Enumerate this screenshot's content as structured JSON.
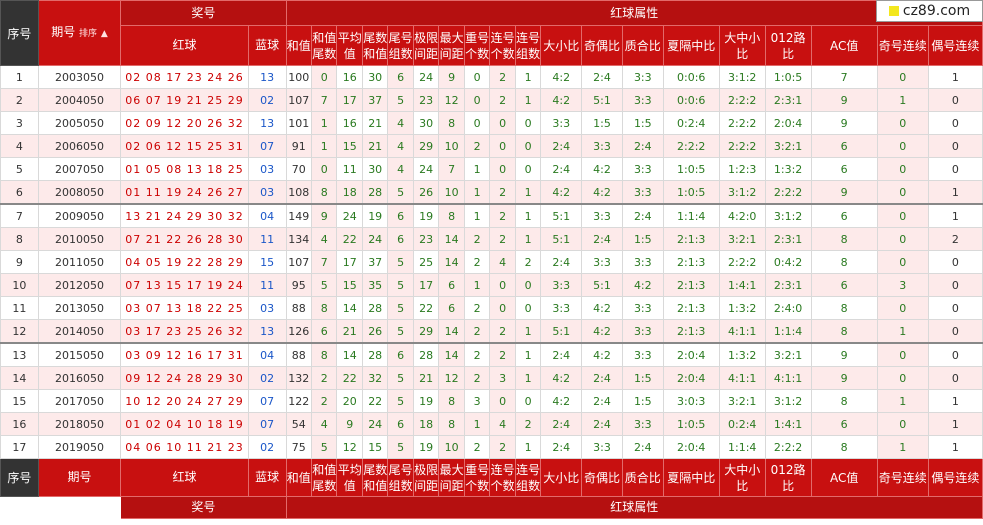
{
  "badge": {
    "text": "cz89.com",
    "icon": "yellow-square-icon"
  },
  "colors": {
    "header_red": "#c81010",
    "header_dark": "#333333",
    "red_ball": "#cc0000",
    "blue_ball": "#1a56c8",
    "attr_green": "#2a7a20"
  },
  "header": {
    "seq": "序号",
    "period": "期号",
    "sort": "排序",
    "prize": "奖号",
    "attr": "红球属性",
    "red": "红球",
    "blue": "蓝球",
    "cols": [
      "和值",
      "和值尾数",
      "平均值",
      "尾数和值",
      "尾号组数",
      "极限间距",
      "最大间距",
      "重号个数",
      "连号个数",
      "连号组数",
      "大小比",
      "奇偶比",
      "质合比",
      "夏隔中比",
      "大中小比",
      "012路比",
      "AC值",
      "奇号连续",
      "偶号连续"
    ]
  },
  "footer": {
    "seq": "序号",
    "period": "期号",
    "red": "红球",
    "blue": "蓝球",
    "prize": "奖号",
    "attr": "红球属性"
  },
  "rows": [
    {
      "seq": "1",
      "period": "2003050",
      "red": "02 08 17 23 24 26",
      "blue": "13",
      "v": [
        "100",
        "0",
        "16",
        "30",
        "6",
        "24",
        "9",
        "0",
        "2",
        "1",
        "4:2",
        "2:4",
        "3:3",
        "0:0:6",
        "3:1:2",
        "1:0:5",
        "7",
        "0",
        "1"
      ]
    },
    {
      "seq": "2",
      "period": "2004050",
      "red": "06 07 19 21 25 29",
      "blue": "02",
      "v": [
        "107",
        "7",
        "17",
        "37",
        "5",
        "23",
        "12",
        "0",
        "2",
        "1",
        "4:2",
        "5:1",
        "3:3",
        "0:0:6",
        "2:2:2",
        "2:3:1",
        "9",
        "1",
        "0"
      ]
    },
    {
      "seq": "3",
      "period": "2005050",
      "red": "02 09 12 20 26 32",
      "blue": "13",
      "v": [
        "101",
        "1",
        "16",
        "21",
        "4",
        "30",
        "8",
        "0",
        "0",
        "0",
        "3:3",
        "1:5",
        "1:5",
        "0:2:4",
        "2:2:2",
        "2:0:4",
        "9",
        "0",
        "0"
      ]
    },
    {
      "seq": "4",
      "period": "2006050",
      "red": "02 06 12 15 25 31",
      "blue": "07",
      "v": [
        "91",
        "1",
        "15",
        "21",
        "4",
        "29",
        "10",
        "2",
        "0",
        "0",
        "2:4",
        "3:3",
        "2:4",
        "2:2:2",
        "2:2:2",
        "3:2:1",
        "6",
        "0",
        "0"
      ]
    },
    {
      "seq": "5",
      "period": "2007050",
      "red": "01 05 08 13 18 25",
      "blue": "03",
      "v": [
        "70",
        "0",
        "11",
        "30",
        "4",
        "24",
        "7",
        "1",
        "0",
        "0",
        "2:4",
        "4:2",
        "3:3",
        "1:0:5",
        "1:2:3",
        "1:3:2",
        "6",
        "0",
        "0"
      ]
    },
    {
      "seq": "6",
      "period": "2008050",
      "red": "01 11 19 24 26 27",
      "blue": "03",
      "v": [
        "108",
        "8",
        "18",
        "28",
        "5",
        "26",
        "10",
        "1",
        "2",
        "1",
        "4:2",
        "4:2",
        "3:3",
        "1:0:5",
        "3:1:2",
        "2:2:2",
        "9",
        "0",
        "1"
      ]
    },
    {
      "seq": "7",
      "period": "2009050",
      "red": "13 21 24 29 30 32",
      "blue": "04",
      "v": [
        "149",
        "9",
        "24",
        "19",
        "6",
        "19",
        "8",
        "1",
        "2",
        "1",
        "5:1",
        "3:3",
        "2:4",
        "1:1:4",
        "4:2:0",
        "3:1:2",
        "6",
        "0",
        "1"
      ]
    },
    {
      "seq": "8",
      "period": "2010050",
      "red": "07 21 22 26 28 30",
      "blue": "11",
      "v": [
        "134",
        "4",
        "22",
        "24",
        "6",
        "23",
        "14",
        "2",
        "2",
        "1",
        "5:1",
        "2:4",
        "1:5",
        "2:1:3",
        "3:2:1",
        "2:3:1",
        "8",
        "0",
        "2"
      ]
    },
    {
      "seq": "9",
      "period": "2011050",
      "red": "04 05 19 22 28 29",
      "blue": "15",
      "v": [
        "107",
        "7",
        "17",
        "37",
        "5",
        "25",
        "14",
        "2",
        "4",
        "2",
        "2:4",
        "3:3",
        "3:3",
        "2:1:3",
        "2:2:2",
        "0:4:2",
        "8",
        "0",
        "0"
      ]
    },
    {
      "seq": "10",
      "period": "2012050",
      "red": "07 13 15 17 19 24",
      "blue": "11",
      "v": [
        "95",
        "5",
        "15",
        "35",
        "5",
        "17",
        "6",
        "1",
        "0",
        "0",
        "3:3",
        "5:1",
        "4:2",
        "2:1:3",
        "1:4:1",
        "2:3:1",
        "6",
        "3",
        "0"
      ]
    },
    {
      "seq": "11",
      "period": "2013050",
      "red": "03 07 13 18 22 25",
      "blue": "03",
      "v": [
        "88",
        "8",
        "14",
        "28",
        "5",
        "22",
        "6",
        "2",
        "0",
        "0",
        "3:3",
        "4:2",
        "3:3",
        "2:1:3",
        "1:3:2",
        "2:4:0",
        "8",
        "0",
        "0"
      ]
    },
    {
      "seq": "12",
      "period": "2014050",
      "red": "03 17 23 25 26 32",
      "blue": "13",
      "v": [
        "126",
        "6",
        "21",
        "26",
        "5",
        "29",
        "14",
        "2",
        "2",
        "1",
        "5:1",
        "4:2",
        "3:3",
        "2:1:3",
        "4:1:1",
        "1:1:4",
        "8",
        "1",
        "0"
      ]
    },
    {
      "seq": "13",
      "period": "2015050",
      "red": "03 09 12 16 17 31",
      "blue": "04",
      "v": [
        "88",
        "8",
        "14",
        "28",
        "6",
        "28",
        "14",
        "2",
        "2",
        "1",
        "2:4",
        "4:2",
        "3:3",
        "2:0:4",
        "1:3:2",
        "3:2:1",
        "9",
        "0",
        "0"
      ]
    },
    {
      "seq": "14",
      "period": "2016050",
      "red": "09 12 24 28 29 30",
      "blue": "02",
      "v": [
        "132",
        "2",
        "22",
        "32",
        "5",
        "21",
        "12",
        "2",
        "3",
        "1",
        "4:2",
        "2:4",
        "1:5",
        "2:0:4",
        "4:1:1",
        "4:1:1",
        "9",
        "0",
        "0"
      ]
    },
    {
      "seq": "15",
      "period": "2017050",
      "red": "10 12 20 24 27 29",
      "blue": "07",
      "v": [
        "122",
        "2",
        "20",
        "22",
        "5",
        "19",
        "8",
        "3",
        "0",
        "0",
        "4:2",
        "2:4",
        "1:5",
        "3:0:3",
        "3:2:1",
        "3:1:2",
        "8",
        "1",
        "1"
      ]
    },
    {
      "seq": "16",
      "period": "2018050",
      "red": "01 02 04 10 18 19",
      "blue": "07",
      "v": [
        "54",
        "4",
        "9",
        "24",
        "6",
        "18",
        "8",
        "1",
        "4",
        "2",
        "2:4",
        "2:4",
        "3:3",
        "1:0:5",
        "0:2:4",
        "1:4:1",
        "6",
        "0",
        "1"
      ]
    },
    {
      "seq": "17",
      "period": "2019050",
      "red": "04 06 10 11 21 23",
      "blue": "02",
      "v": [
        "75",
        "5",
        "12",
        "15",
        "5",
        "19",
        "10",
        "2",
        "2",
        "1",
        "2:4",
        "3:3",
        "2:4",
        "2:0:4",
        "1:1:4",
        "2:2:2",
        "8",
        "1",
        "1"
      ]
    }
  ]
}
